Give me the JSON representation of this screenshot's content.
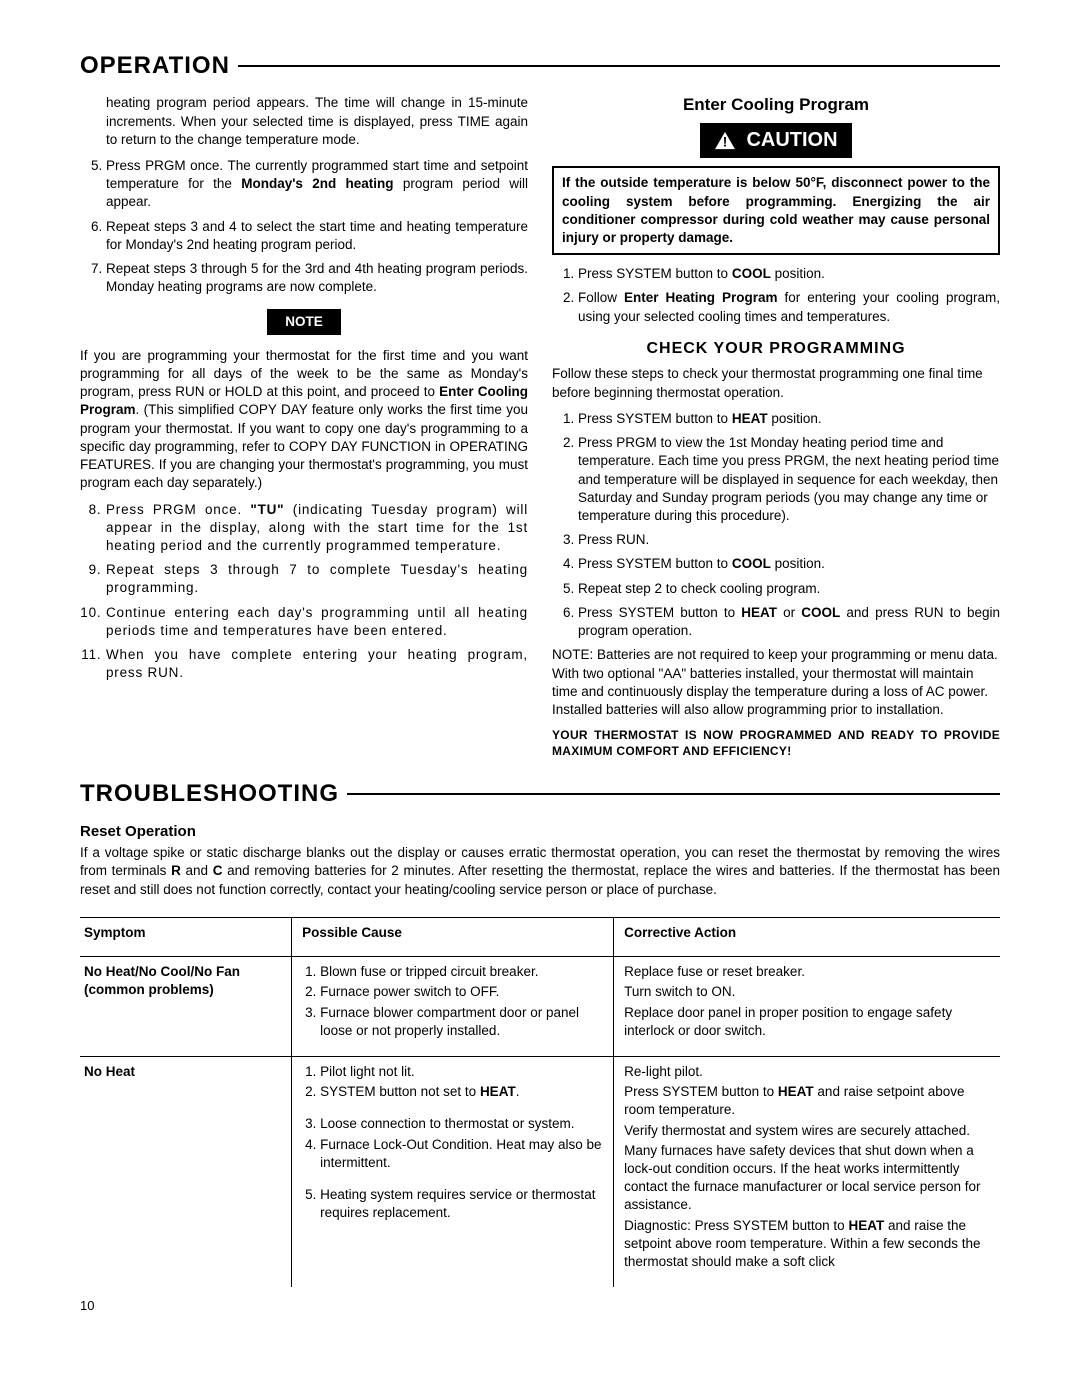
{
  "page_number": "10",
  "operation": {
    "title": "OPERATION",
    "left": {
      "intro_fragment": "heating program period appears. The time will change in 15-minute increments. When your selected time is displayed, press TIME again to return to the change temperature mode.",
      "step5_pre": "Press PRGM once. The currently programmed start time and setpoint temperature for the ",
      "step5_bold": "Monday's 2nd heating",
      "step5_post": " program period will appear.",
      "step6": "Repeat steps 3 and 4 to select the start time and heating temperature for Monday's 2nd heating program period.",
      "step7": "Repeat steps 3 through 5 for the 3rd and 4th heating program periods. Monday heating programs are now complete.",
      "note_label": "NOTE",
      "note_para_pre": "If you are programming your thermostat for the first time and you want programming for all days of the week to be the same as Monday's program, press RUN or HOLD at this point, and proceed to ",
      "note_para_bold": "Enter Cooling Program",
      "note_para_post": ". (This simplified COPY DAY feature only works the first time you program your thermostat. If you want to copy one day's programming to a specific day programming, refer to COPY DAY FUNCTION in OPERATING FEATURES. If you are changing your thermostat's programming, you must program each day separately.)",
      "step8_a": "Press PRGM once. ",
      "step8_b": "\"TU\"",
      "step8_c": " (indicating Tuesday program) will appear in the display, along with the start time for the 1st heating period and the currently programmed temperature.",
      "step9": "Repeat steps 3 through 7 to complete Tuesday's heating programming.",
      "step10": "Continue entering each day's programming until all heating periods time and temperatures have been entered.",
      "step11": "When you have complete entering your heating program, press RUN."
    },
    "right": {
      "cooling_title": "Enter Cooling Program",
      "caution_label": "CAUTION",
      "caution_text": "If the outside temperature is below 50°F, disconnect power to the cooling system before programming. Energizing the air conditioner compressor during cold weather may cause personal injury or property damage.",
      "cool1_a": "Press SYSTEM button to ",
      "cool1_b": "COOL",
      "cool1_c": " position.",
      "cool2_a": "Follow ",
      "cool2_b": "Enter Heating Program",
      "cool2_c": " for entering your cooling program, using your selected cooling times and temperatures.",
      "check_title": "CHECK YOUR PROGRAMMING",
      "check_intro": "Follow these steps to check your thermostat programming one final time before beginning thermostat operation.",
      "chk1_a": "Press SYSTEM button to ",
      "chk1_b": "HEAT",
      "chk1_c": " position.",
      "chk2": "Press PRGM to view the 1st Monday heating period time and temperature. Each time you press PRGM, the next heating period time and temperature will be displayed in sequence for each weekday, then Saturday and Sunday program periods (you may change any time or temperature during this procedure).",
      "chk3": "Press RUN.",
      "chk4_a": "Press SYSTEM button to ",
      "chk4_b": "COOL",
      "chk4_c": " position.",
      "chk5": "Repeat step 2 to check cooling program.",
      "chk6_a": "Press SYSTEM button to ",
      "chk6_b": "HEAT",
      "chk6_c": " or ",
      "chk6_d": "COOL",
      "chk6_e": " and press RUN to begin program operation.",
      "battery_note": "NOTE: Batteries are not required to keep your programming or menu data. With two optional \"AA\" batteries installed, your thermostat will maintain time and continuously display the temperature during a loss of AC power. Installed batteries will also allow programming prior to installation.",
      "ready": "YOUR THERMOSTAT IS NOW PROGRAMMED AND READY TO PROVIDE MAXIMUM COMFORT AND EFFICIENCY!"
    }
  },
  "troubleshooting": {
    "title": "TROUBLESHOOTING",
    "reset_heading": "Reset Operation",
    "reset_a": "If a voltage spike or static discharge blanks out the display or causes erratic thermostat operation, you can reset the thermostat by removing the wires from terminals ",
    "reset_b": "R",
    "reset_c": " and ",
    "reset_d": "C",
    "reset_e": " and removing batteries for 2 minutes. After resetting the thermostat, replace the wires and batteries. If the thermostat has been reset and still does not function correctly, contact your heating/cooling service person or place of purchase.",
    "headers": {
      "symptom": "Symptom",
      "cause": "Possible Cause",
      "action": "Corrective Action"
    },
    "rows": [
      {
        "symptom": "No Heat/No Cool/No Fan (common problems)",
        "causes": [
          "Blown fuse or tripped circuit breaker.",
          "Furnace power switch to OFF.",
          "Furnace blower compartment door or panel loose or not properly installed."
        ],
        "actions": [
          "Replace fuse or reset breaker.",
          "Turn switch to ON.",
          "Replace door panel in proper position to engage safety interlock or door switch."
        ]
      },
      {
        "symptom": "No Heat",
        "causes_html": [
          {
            "pre": "Pilot light not lit."
          },
          {
            "pre": "SYSTEM button not set to ",
            "b": "HEAT",
            "post": "."
          },
          {
            "pre": "Loose connection to thermostat or system."
          },
          {
            "pre": "Furnace Lock-Out Condition. Heat may also be intermittent."
          },
          {
            "pre": "Heating system requires service or thermostat requires replacement."
          }
        ],
        "actions_html": [
          {
            "pre": "Re-light pilot."
          },
          {
            "pre": "Press SYSTEM button to ",
            "b": "HEAT",
            "post": " and raise setpoint above room temperature."
          },
          {
            "pre": "Verify thermostat and system wires are securely attached."
          },
          {
            "pre": "Many furnaces have safety devices that shut down when a lock-out condition occurs. If the heat works intermittently contact the furnace manufacturer or local service person for assistance."
          },
          {
            "pre": "Diagnostic: Press SYSTEM button to ",
            "b": "HEAT",
            "post": " and raise the setpoint above room temperature. Within a few seconds the thermostat should make a soft click"
          }
        ]
      }
    ]
  }
}
